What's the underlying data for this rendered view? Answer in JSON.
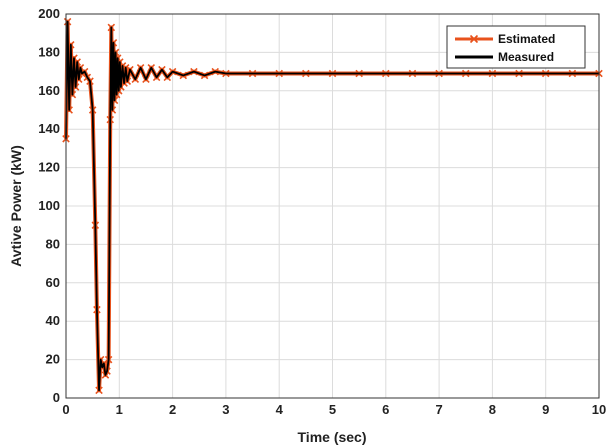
{
  "chart_data": {
    "type": "line",
    "title": "",
    "xlabel": "Time (sec)",
    "ylabel": "Avtive Power (kW)",
    "xlim": [
      0,
      10
    ],
    "ylim": [
      0,
      200
    ],
    "x_ticks": [
      "0",
      "1",
      "2",
      "3",
      "4",
      "5",
      "6",
      "7",
      "8",
      "9",
      "10"
    ],
    "y_ticks": [
      "0",
      "20",
      "40",
      "60",
      "80",
      "100",
      "120",
      "140",
      "160",
      "180",
      "200"
    ],
    "grid": true,
    "legend_position": "top-right",
    "series": [
      {
        "name": "Estimated",
        "color": "#e8521c",
        "marker": "x",
        "x": [
          0.0,
          0.03,
          0.06,
          0.09,
          0.12,
          0.15,
          0.18,
          0.21,
          0.24,
          0.27,
          0.3,
          0.35,
          0.4,
          0.45,
          0.5,
          0.55,
          0.58,
          0.62,
          0.65,
          0.68,
          0.71,
          0.74,
          0.77,
          0.8,
          0.83,
          0.85,
          0.87,
          0.89,
          0.91,
          0.93,
          0.95,
          0.97,
          0.99,
          1.01,
          1.03,
          1.06,
          1.09,
          1.12,
          1.15,
          1.2,
          1.3,
          1.4,
          1.5,
          1.6,
          1.7,
          1.8,
          1.9,
          2.0,
          2.2,
          2.4,
          2.6,
          2.8,
          3.0,
          3.5,
          4.0,
          4.5,
          5.0,
          5.5,
          6.0,
          6.5,
          7.0,
          7.5,
          8.0,
          8.5,
          9.0,
          9.5,
          10.0
        ],
        "y": [
          135,
          196,
          150,
          184,
          158,
          177,
          162,
          175,
          166,
          172,
          169,
          170,
          167,
          165,
          150,
          90,
          46,
          4,
          20,
          16,
          18,
          12,
          14,
          20,
          145,
          193,
          150,
          185,
          155,
          180,
          158,
          177,
          160,
          175,
          162,
          173,
          164,
          172,
          165,
          171,
          166,
          172,
          166,
          172,
          167,
          171,
          167,
          170,
          168,
          170,
          168,
          170,
          169,
          169,
          169,
          169,
          169,
          169,
          169,
          169,
          169,
          169,
          169,
          169,
          169,
          169,
          169
        ]
      },
      {
        "name": "Measured",
        "color": "#000000",
        "marker": "none",
        "x": [
          0.0,
          0.03,
          0.06,
          0.09,
          0.12,
          0.15,
          0.18,
          0.21,
          0.24,
          0.27,
          0.3,
          0.35,
          0.4,
          0.45,
          0.5,
          0.55,
          0.58,
          0.62,
          0.65,
          0.68,
          0.71,
          0.74,
          0.77,
          0.8,
          0.83,
          0.85,
          0.87,
          0.89,
          0.91,
          0.93,
          0.95,
          0.97,
          0.99,
          1.01,
          1.03,
          1.06,
          1.09,
          1.12,
          1.15,
          1.2,
          1.3,
          1.4,
          1.5,
          1.6,
          1.7,
          1.8,
          1.9,
          2.0,
          2.2,
          2.4,
          2.6,
          2.8,
          3.0,
          3.5,
          4.0,
          4.5,
          5.0,
          5.5,
          6.0,
          6.5,
          7.0,
          7.5,
          8.0,
          8.5,
          9.0,
          9.5,
          10.0
        ],
        "y": [
          135,
          196,
          150,
          184,
          158,
          177,
          162,
          175,
          166,
          172,
          169,
          170,
          167,
          165,
          150,
          90,
          46,
          4,
          20,
          16,
          18,
          12,
          14,
          20,
          145,
          193,
          150,
          185,
          155,
          180,
          158,
          177,
          160,
          175,
          162,
          173,
          164,
          172,
          165,
          171,
          166,
          172,
          166,
          172,
          167,
          171,
          167,
          170,
          168,
          170,
          168,
          170,
          169,
          169,
          169,
          169,
          169,
          169,
          169,
          169,
          169,
          169,
          169,
          169,
          169,
          169,
          169
        ]
      }
    ]
  }
}
